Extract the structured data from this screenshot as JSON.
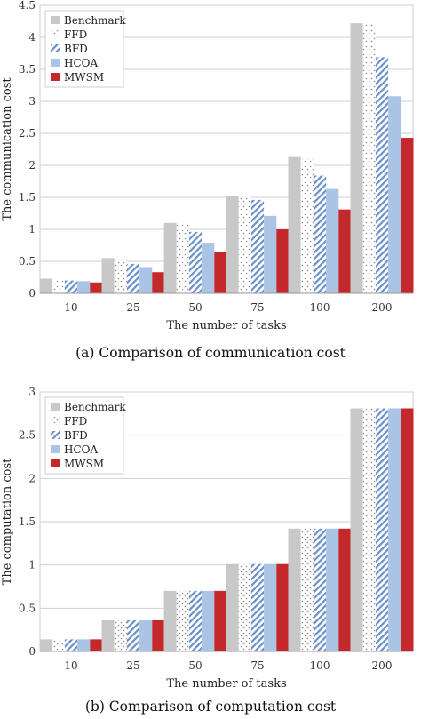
{
  "colors": {
    "benchmark": "#c8c8c8",
    "ffd_dot": "#888888",
    "bfd_stripe": "#6a8fc9",
    "hcoa": "#a9c4e4",
    "mwsm": "#c4282b",
    "grid": "#cfcfcf",
    "axis": "#9a9a9a"
  },
  "chart_data": [
    {
      "type": "bar",
      "caption": "(a) Comparison of communication cost",
      "xlabel": "The number of tasks",
      "ylabel": "The communication cost",
      "categories": [
        "10",
        "25",
        "50",
        "75",
        "100",
        "200"
      ],
      "ylim": [
        0,
        4.5
      ],
      "yticks": [
        "0",
        "0.5",
        "1",
        "1.5",
        "2",
        "2.5",
        "3",
        "3.5",
        "4",
        "4.5"
      ],
      "grid": true,
      "legend_placement": "top-left",
      "series": [
        {
          "name": "Benchmark",
          "style": "benchmark",
          "values": [
            0.23,
            0.55,
            1.1,
            1.52,
            2.13,
            4.22
          ]
        },
        {
          "name": "FFD",
          "style": "ffd",
          "values": [
            0.21,
            0.54,
            1.08,
            1.51,
            2.1,
            4.21
          ]
        },
        {
          "name": "BFD",
          "style": "bfd",
          "values": [
            0.2,
            0.46,
            0.96,
            1.46,
            1.84,
            3.69
          ]
        },
        {
          "name": "HCOA",
          "style": "hcoa",
          "values": [
            0.19,
            0.41,
            0.79,
            1.21,
            1.63,
            3.08
          ]
        },
        {
          "name": "MWSM",
          "style": "mwsm",
          "values": [
            0.17,
            0.33,
            0.65,
            1.0,
            1.31,
            2.43
          ]
        }
      ]
    },
    {
      "type": "bar",
      "caption": "(b) Comparison of computation cost",
      "xlabel": "The number of tasks",
      "ylabel": "The computation cost",
      "categories": [
        "10",
        "25",
        "50",
        "75",
        "100",
        "200"
      ],
      "ylim": [
        0,
        3
      ],
      "yticks": [
        "0",
        "0.5",
        "1",
        "1.5",
        "2",
        "2.5",
        "3"
      ],
      "grid": true,
      "legend_placement": "top-left",
      "series": [
        {
          "name": "Benchmark",
          "style": "benchmark",
          "values": [
            0.14,
            0.36,
            0.7,
            1.01,
            1.42,
            2.81
          ]
        },
        {
          "name": "FFD",
          "style": "ffd",
          "values": [
            0.14,
            0.36,
            0.7,
            1.01,
            1.42,
            2.81
          ]
        },
        {
          "name": "BFD",
          "style": "bfd",
          "values": [
            0.14,
            0.36,
            0.7,
            1.01,
            1.42,
            2.81
          ]
        },
        {
          "name": "HCOA",
          "style": "hcoa",
          "values": [
            0.14,
            0.36,
            0.7,
            1.01,
            1.42,
            2.81
          ]
        },
        {
          "name": "MWSM",
          "style": "mwsm",
          "values": [
            0.14,
            0.36,
            0.7,
            1.01,
            1.42,
            2.81
          ]
        }
      ]
    }
  ]
}
